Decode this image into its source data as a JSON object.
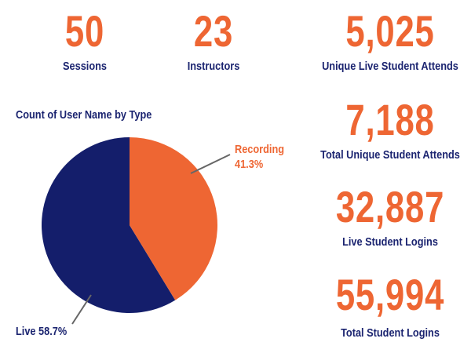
{
  "kpis": [
    {
      "value": "50",
      "label": "Sessions"
    },
    {
      "value": "23",
      "label": "Instructors"
    },
    {
      "value": "5,025",
      "label": "Unique Live Student Attends"
    },
    {
      "value": "7,188",
      "label": "Total Unique Student Attends"
    },
    {
      "value": "32,887",
      "label": "Live Student Logins"
    },
    {
      "value": "55,994",
      "label": "Total Student Logins"
    }
  ],
  "colors": {
    "accent": "#EE6633",
    "navy": "#141E6B"
  },
  "chart_data": {
    "type": "pie",
    "title": "Count of User Name by Type",
    "slices": [
      {
        "name": "Recording",
        "value": 41.3,
        "pct_label": "41.3%",
        "color": "#EE6633"
      },
      {
        "name": "Live",
        "value": 58.7,
        "pct_label": "58.7%",
        "color": "#141E6B"
      }
    ]
  }
}
